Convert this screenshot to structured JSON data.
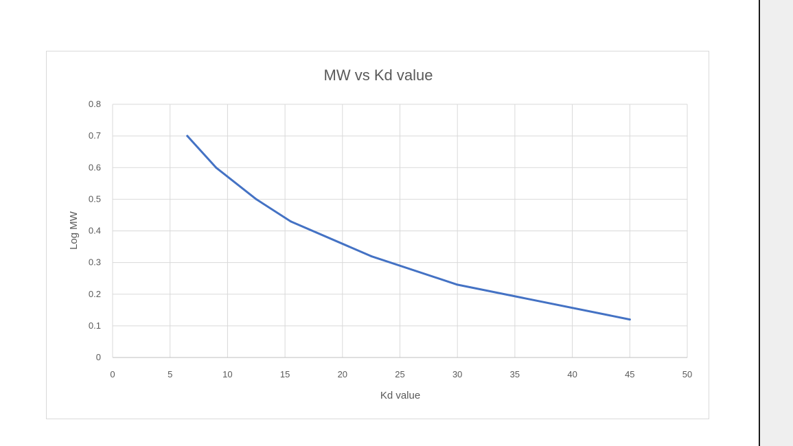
{
  "chart_data": {
    "type": "line",
    "title": "MW vs Kd value",
    "xlabel": "Kd value",
    "ylabel": "Log MW",
    "xlim": [
      0,
      50
    ],
    "ylim": [
      0,
      0.8
    ],
    "x_ticks": [
      "0",
      "5",
      "10",
      "15",
      "20",
      "25",
      "30",
      "35",
      "40",
      "45",
      "50"
    ],
    "y_ticks": [
      "0",
      "0.1",
      "0.2",
      "0.3",
      "0.4",
      "0.5",
      "0.6",
      "0.7",
      "0.8"
    ],
    "grid": "on",
    "legend": "none",
    "series": [
      {
        "color": "#4472c4",
        "x": [
          6.5,
          9,
          12.5,
          15.5,
          22.5,
          30,
          45
        ],
        "y": [
          0.7,
          0.6,
          0.5,
          0.43,
          0.32,
          0.23,
          0.12
        ]
      }
    ]
  }
}
